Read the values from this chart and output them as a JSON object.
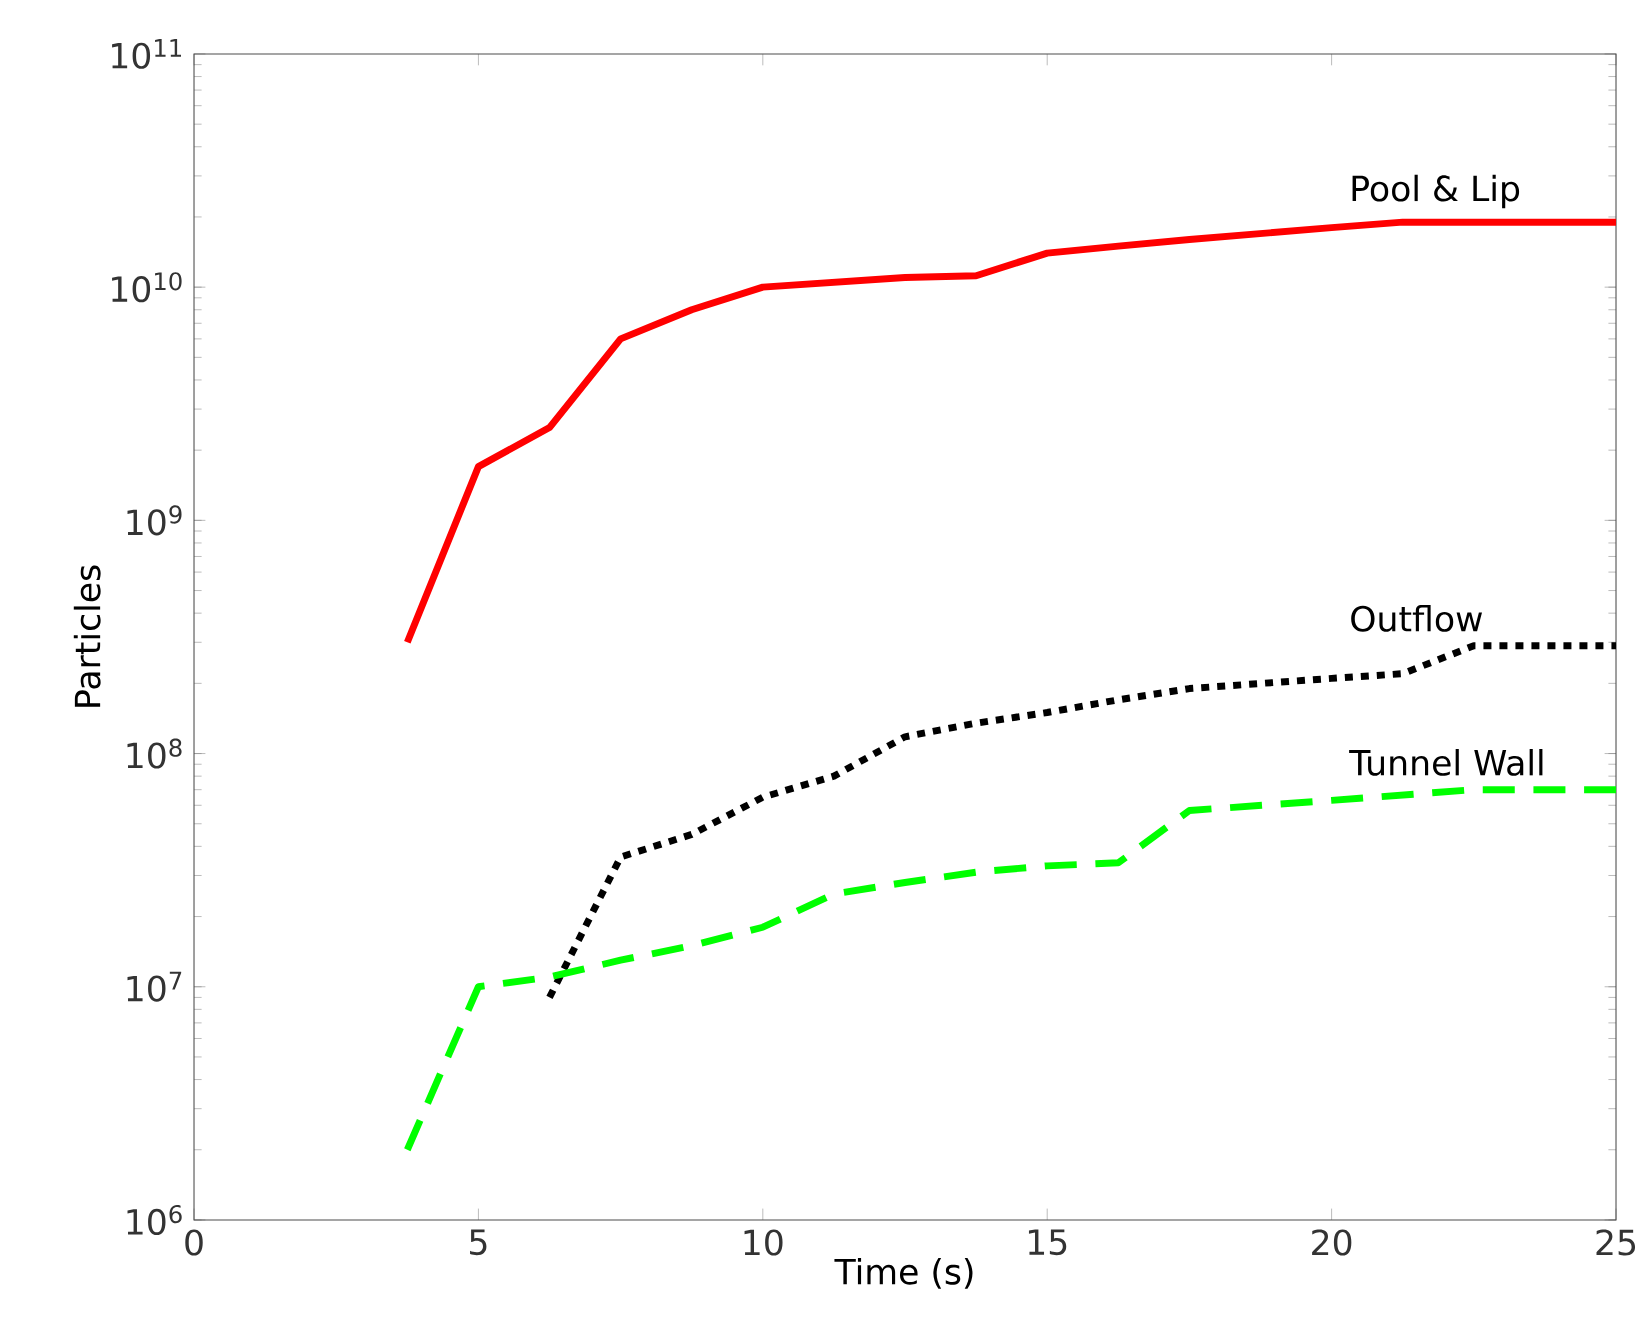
{
  "chart_data": {
    "type": "line",
    "xlabel": "Time (s)",
    "ylabel": "Particles",
    "log": "y",
    "xlim": [
      0,
      25
    ],
    "xticks": [
      0,
      5,
      10,
      15,
      20,
      25
    ],
    "ylim": [
      1000000,
      100000000000
    ],
    "yticks": [
      {
        "value": 1000000,
        "label": "10$^{6}$"
      },
      {
        "value": 10000000,
        "label": "10$^{7}$"
      },
      {
        "value": 100000000,
        "label": "10$^{8}$"
      },
      {
        "value": 1000000000,
        "label": "10$^{9}$"
      },
      {
        "value": 10000000000,
        "label": "10$^{10}$"
      },
      {
        "value": 100000000000,
        "label": "10$^{11}$"
      }
    ],
    "grid": false,
    "legend": false,
    "series": [
      {
        "name": "Pool & Lip",
        "color": "#ff0000",
        "line_style": "solid",
        "x": [
          3.75,
          5,
          6.25,
          7.5,
          8.75,
          10,
          12.5,
          13.75,
          15,
          16.25,
          17.5,
          20,
          21.25,
          25
        ],
        "values": [
          300000000,
          1700000000,
          2500000000,
          6000000000,
          8000000000,
          10000000000,
          11000000000,
          11200000000,
          14000000000,
          15000000000,
          16000000000,
          18000000000,
          19000000000,
          19000000000
        ]
      },
      {
        "name": "Outflow",
        "color": "#000000",
        "line_style": "dotted",
        "x": [
          6.25,
          7.5,
          8.75,
          10,
          11.25,
          12.5,
          13.75,
          15,
          16.25,
          17.5,
          20,
          21.25,
          22.5,
          25
        ],
        "values": [
          9000000,
          36000000,
          45000000,
          65000000,
          80000000,
          118000000,
          135000000,
          150000000,
          170000000,
          190000000,
          210000000,
          220000000,
          290000000,
          290000000
        ]
      },
      {
        "name": "Tunnel Wall",
        "color": "#00ff00",
        "line_style": "dashed",
        "x": [
          3.75,
          5,
          6.25,
          7.5,
          8.75,
          10,
          11.25,
          12.5,
          13.75,
          15,
          16.25,
          17.5,
          20,
          22.5,
          25
        ],
        "values": [
          2000000,
          10000000,
          11000000,
          13000000,
          15000000,
          18000000,
          25000000,
          28000000,
          31000000,
          33000000,
          34000000,
          57000000,
          63000000,
          70000000,
          70000000
        ]
      }
    ]
  }
}
